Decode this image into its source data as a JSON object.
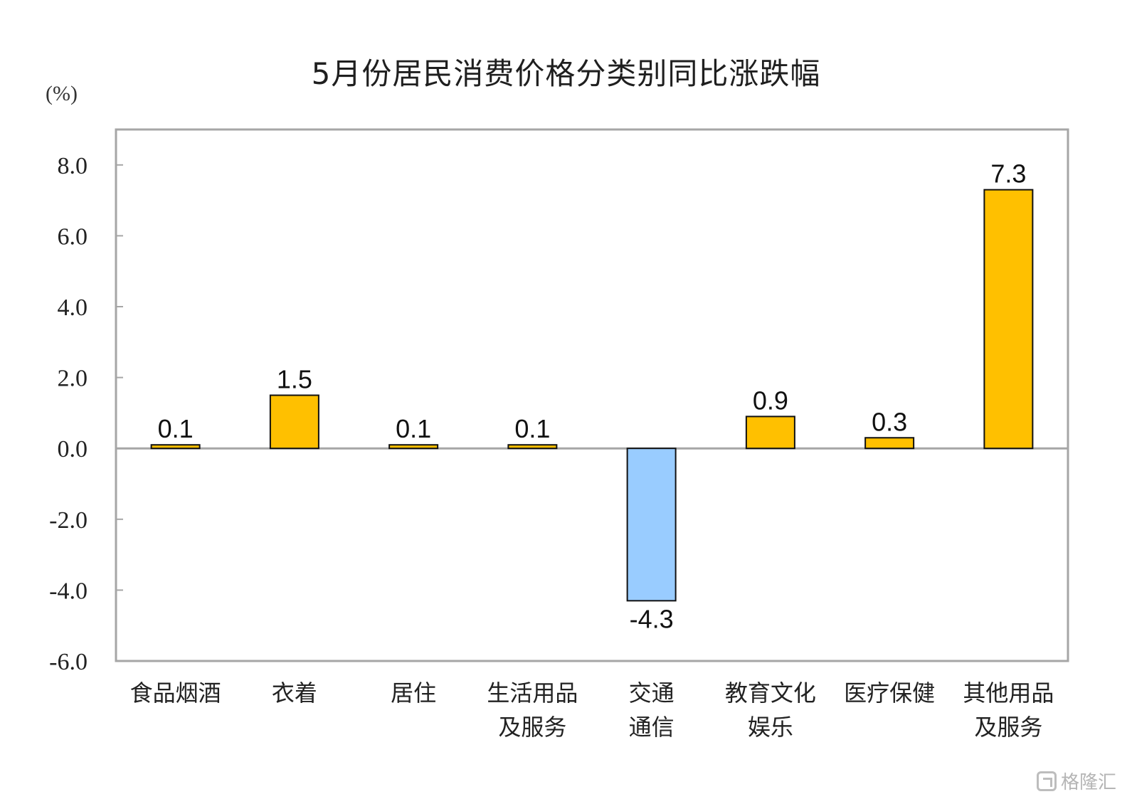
{
  "chart_data": {
    "type": "bar",
    "title": "5月份居民消费价格分类别同比涨跌幅",
    "unit": "(%)",
    "categories": [
      [
        "食品烟酒"
      ],
      [
        "衣着"
      ],
      [
        "居住"
      ],
      [
        "生活用品",
        "及服务"
      ],
      [
        "交通",
        "通信"
      ],
      [
        "教育文化",
        "娱乐"
      ],
      [
        "医疗保健"
      ],
      [
        "其他用品",
        "及服务"
      ]
    ],
    "values": [
      0.1,
      1.5,
      0.1,
      0.1,
      -4.3,
      0.9,
      0.3,
      7.3
    ],
    "value_labels": [
      "0.1",
      "1.5",
      "0.1",
      "0.1",
      "-4.3",
      "0.9",
      "0.3",
      "7.3"
    ],
    "ylim": [
      -6.0,
      9.0
    ],
    "yticks": [
      8.0,
      6.0,
      4.0,
      2.0,
      0.0,
      -2.0,
      -4.0,
      -6.0
    ],
    "ytick_labels": [
      "8.0",
      "6.0",
      "4.0",
      "2.0",
      "0.0",
      "-2.0",
      "-4.0",
      "-6.0"
    ],
    "colors": {
      "positive": "#FFC000",
      "negative": "#99CCFF",
      "bar_edge": "#111111",
      "frame": "#A6A6A6",
      "zero_line": "#A6A6A6"
    },
    "grid": false,
    "legend": "none"
  },
  "watermark": "格隆汇"
}
